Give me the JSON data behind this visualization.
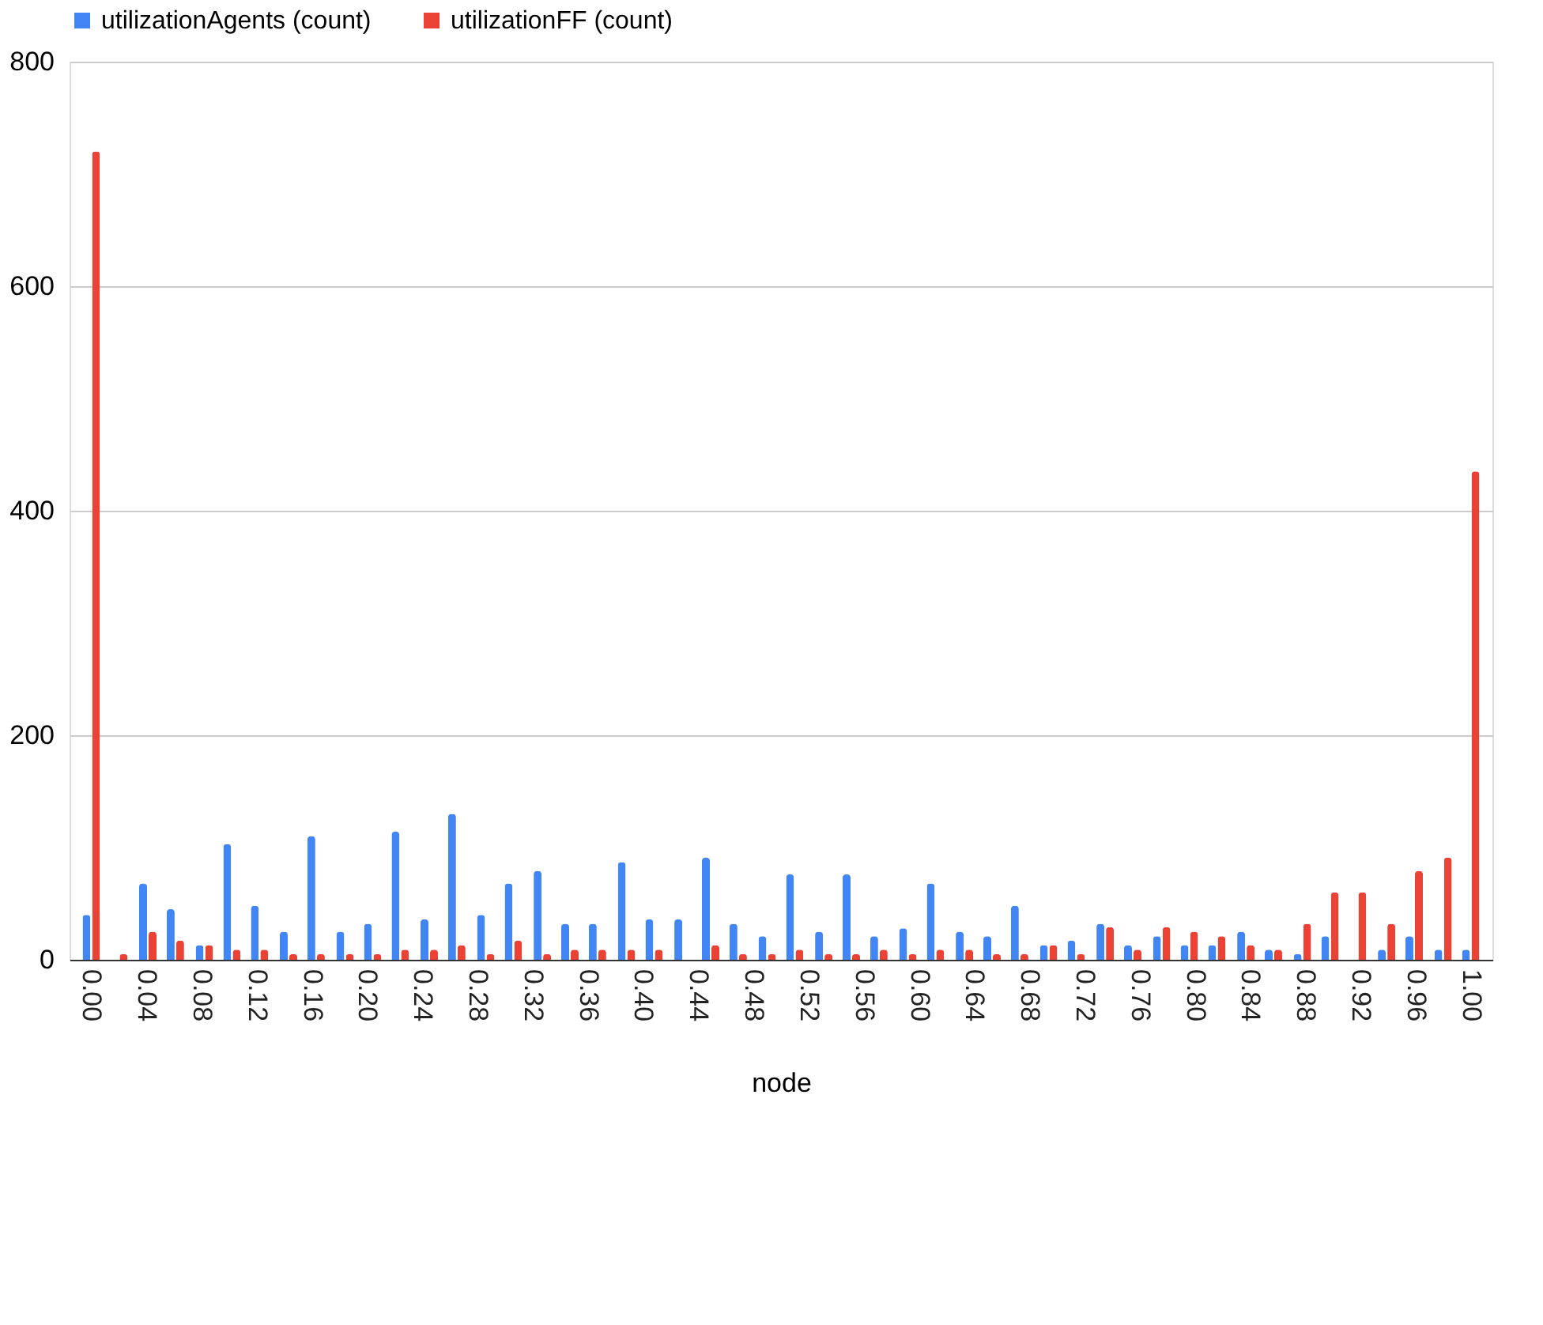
{
  "chart_data": {
    "type": "bar",
    "xlabel": "node",
    "x": [
      0,
      0.02,
      0.041,
      0.061,
      0.082,
      0.102,
      0.122,
      0.143,
      0.163,
      0.184,
      0.204,
      0.224,
      0.245,
      0.265,
      0.286,
      0.306,
      0.327,
      0.347,
      0.367,
      0.388,
      0.408,
      0.429,
      0.449,
      0.469,
      0.49,
      0.51,
      0.531,
      0.551,
      0.571,
      0.592,
      0.612,
      0.633,
      0.653,
      0.673,
      0.694,
      0.714,
      0.735,
      0.755,
      0.776,
      0.796,
      0.816,
      0.837,
      0.857,
      0.878,
      0.898,
      0.918,
      0.939,
      0.959,
      0.98,
      1
    ],
    "series": [
      {
        "name": "utilizationAgents (count)",
        "color": "#4285f4",
        "values": [
          40,
          0,
          68,
          45,
          13,
          103,
          48,
          25,
          110,
          25,
          32,
          114,
          36,
          130,
          40,
          68,
          79,
          32,
          32,
          87,
          36,
          36,
          91,
          32,
          21,
          76,
          25,
          76,
          21,
          28,
          68,
          25,
          21,
          48,
          13,
          17,
          32,
          13,
          21,
          13,
          13,
          25,
          9,
          5,
          21,
          0,
          9,
          21,
          9,
          9
        ]
      },
      {
        "name": "utilizationFF (count)",
        "color": "#ea4335",
        "values": [
          720,
          5,
          25,
          17,
          13,
          9,
          9,
          5,
          5,
          5,
          5,
          9,
          9,
          13,
          5,
          17,
          5,
          9,
          9,
          9,
          9,
          0,
          13,
          5,
          5,
          9,
          5,
          5,
          9,
          5,
          9,
          9,
          5,
          5,
          13,
          5,
          29,
          9,
          29,
          25,
          21,
          13,
          9,
          32,
          60,
          60,
          32,
          79,
          91,
          435
        ]
      }
    ],
    "xlim": [
      -0.01,
      1.01
    ],
    "xticks": [
      {
        "value": 0,
        "label": "0.00"
      },
      {
        "value": 0.04,
        "label": "0.04"
      },
      {
        "value": 0.08,
        "label": "0.08"
      },
      {
        "value": 0.12,
        "label": "0.12"
      },
      {
        "value": 0.16,
        "label": "0.16"
      },
      {
        "value": 0.2,
        "label": "0.20"
      },
      {
        "value": 0.24,
        "label": "0.24"
      },
      {
        "value": 0.28,
        "label": "0.28"
      },
      {
        "value": 0.32,
        "label": "0.32"
      },
      {
        "value": 0.36,
        "label": "0.36"
      },
      {
        "value": 0.4,
        "label": "0.40"
      },
      {
        "value": 0.44,
        "label": "0.44"
      },
      {
        "value": 0.48,
        "label": "0.48"
      },
      {
        "value": 0.52,
        "label": "0.52"
      },
      {
        "value": 0.56,
        "label": "0.56"
      },
      {
        "value": 0.6,
        "label": "0.60"
      },
      {
        "value": 0.64,
        "label": "0.64"
      },
      {
        "value": 0.68,
        "label": "0.68"
      },
      {
        "value": 0.72,
        "label": "0.72"
      },
      {
        "value": 0.76,
        "label": "0.76"
      },
      {
        "value": 0.8,
        "label": "0.80"
      },
      {
        "value": 0.84,
        "label": "0.84"
      },
      {
        "value": 0.88,
        "label": "0.88"
      },
      {
        "value": 0.92,
        "label": "0.92"
      },
      {
        "value": 0.96,
        "label": "0.96"
      },
      {
        "value": 1,
        "label": "1.00"
      }
    ],
    "ylim": [
      0,
      800
    ],
    "yticks": [
      0,
      200,
      400,
      600,
      800
    ],
    "grid": "y",
    "legend": "top"
  }
}
